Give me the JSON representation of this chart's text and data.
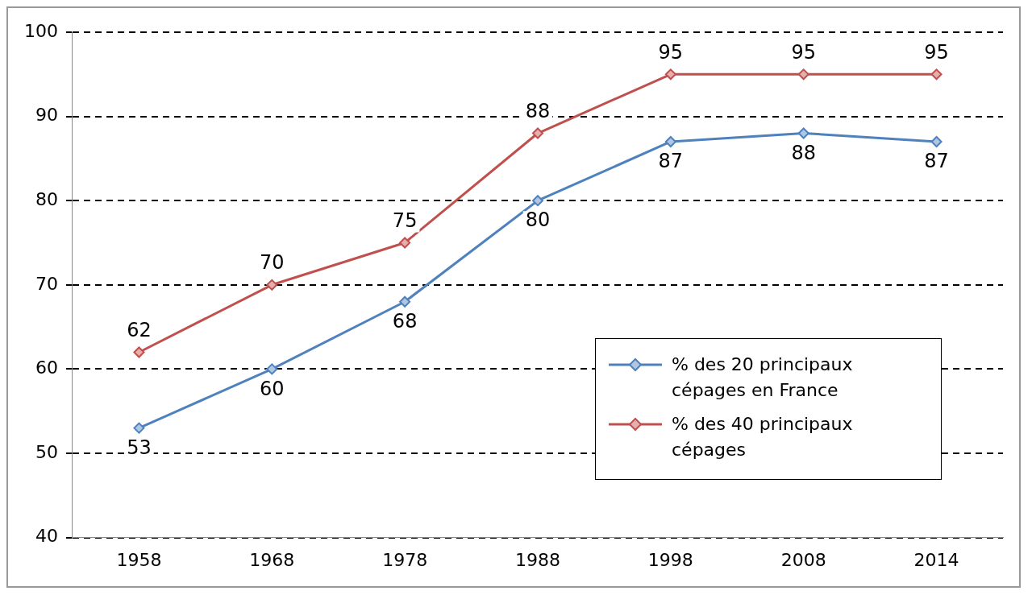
{
  "chart_data": {
    "type": "line",
    "categories": [
      "1958",
      "1968",
      "1978",
      "1988",
      "1998",
      "2008",
      "2014"
    ],
    "series": [
      {
        "name": "% des 20 principaux cépages en France",
        "color": "#4f81bd",
        "values": [
          53,
          60,
          68,
          80,
          87,
          88,
          87
        ]
      },
      {
        "name": "% des 40 principaux cépages",
        "color": "#c0504d",
        "values": [
          62,
          70,
          75,
          88,
          95,
          95,
          95
        ]
      }
    ],
    "ylim": [
      40,
      100
    ],
    "yticks": [
      40,
      50,
      60,
      70,
      80,
      90,
      100
    ],
    "grid": "y",
    "legend": "bottom right",
    "marker": "diamond",
    "line_style": "solid",
    "data_labels": true
  }
}
